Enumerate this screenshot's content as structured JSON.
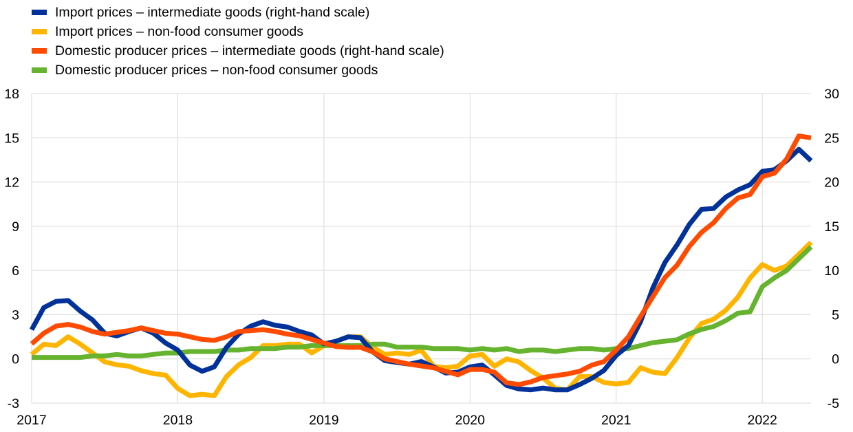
{
  "chart_data": {
    "type": "line",
    "legend_position": "top-left",
    "grid": true,
    "x_axis": {
      "type": "date",
      "range": [
        "2017-01",
        "2022-05"
      ],
      "tick_labels": [
        "2017",
        "2018",
        "2019",
        "2020",
        "2021",
        "2022"
      ]
    },
    "y_left": {
      "range": [
        -3,
        18
      ],
      "ticks": [
        -3,
        0,
        3,
        6,
        9,
        12,
        15,
        18
      ],
      "tick_labels": [
        "-3",
        "0",
        "3",
        "6",
        "9",
        "12",
        "15",
        "18"
      ]
    },
    "y_right": {
      "range": [
        -5,
        30
      ],
      "ticks": [
        -5,
        0,
        5,
        10,
        15,
        20,
        25,
        30
      ],
      "tick_labels": [
        "-5",
        "0",
        "5",
        "10",
        "15",
        "20",
        "25",
        "30"
      ]
    },
    "x": [
      "2017-01",
      "2017-02",
      "2017-03",
      "2017-04",
      "2017-05",
      "2017-06",
      "2017-07",
      "2017-08",
      "2017-09",
      "2017-10",
      "2017-11",
      "2017-12",
      "2018-01",
      "2018-02",
      "2018-03",
      "2018-04",
      "2018-05",
      "2018-06",
      "2018-07",
      "2018-08",
      "2018-09",
      "2018-10",
      "2018-11",
      "2018-12",
      "2019-01",
      "2019-02",
      "2019-03",
      "2019-04",
      "2019-05",
      "2019-06",
      "2019-07",
      "2019-08",
      "2019-09",
      "2019-10",
      "2019-11",
      "2019-12",
      "2020-01",
      "2020-02",
      "2020-03",
      "2020-04",
      "2020-05",
      "2020-06",
      "2020-07",
      "2020-08",
      "2020-09",
      "2020-10",
      "2020-11",
      "2020-12",
      "2021-01",
      "2021-02",
      "2021-03",
      "2021-04",
      "2021-05",
      "2021-06",
      "2021-07",
      "2021-08",
      "2021-09",
      "2021-10",
      "2021-11",
      "2021-12",
      "2022-01",
      "2022-02",
      "2022-03",
      "2022-04",
      "2022-05"
    ],
    "series": [
      {
        "name": "Import prices – intermediate goods (right-hand scale)",
        "axis": "right",
        "color": "#003299",
        "values": [
          3.3,
          5.8,
          6.5,
          6.6,
          5.4,
          4.4,
          2.9,
          2.6,
          3.1,
          3.5,
          2.9,
          1.8,
          1.0,
          -0.7,
          -1.4,
          -0.9,
          1.3,
          2.8,
          3.7,
          4.2,
          3.8,
          3.6,
          3.1,
          2.7,
          1.7,
          2.0,
          2.5,
          2.4,
          0.8,
          -0.2,
          -0.4,
          -0.6,
          -0.3,
          -0.9,
          -1.6,
          -1.5,
          -0.9,
          -0.7,
          -1.8,
          -3.0,
          -3.4,
          -3.5,
          -3.3,
          -3.5,
          -3.5,
          -2.9,
          -2.2,
          -1.3,
          0.4,
          1.5,
          4.2,
          8.0,
          10.9,
          12.9,
          15.2,
          16.9,
          17.0,
          18.3,
          19.1,
          19.7,
          21.2,
          21.4,
          22.4,
          23.7,
          22.4
        ]
      },
      {
        "name": "Import prices – non-food consumer goods",
        "axis": "left",
        "color": "#FFB400",
        "values": [
          0.3,
          1.0,
          0.9,
          1.5,
          1.0,
          0.4,
          -0.2,
          -0.4,
          -0.5,
          -0.8,
          -1.0,
          -1.1,
          -2.0,
          -2.5,
          -2.4,
          -2.5,
          -1.2,
          -0.4,
          0.1,
          0.9,
          0.9,
          1.0,
          1.0,
          0.4,
          0.9,
          1.2,
          1.5,
          1.5,
          0.8,
          0.3,
          0.4,
          0.3,
          0.6,
          -0.5,
          -0.6,
          -0.5,
          0.2,
          0.3,
          -0.5,
          0.0,
          -0.2,
          -0.8,
          -1.3,
          -2.0,
          -2.1,
          -1.2,
          -1.2,
          -1.6,
          -1.7,
          -1.6,
          -0.6,
          -0.9,
          -1.0,
          0.1,
          1.4,
          2.4,
          2.7,
          3.3,
          4.2,
          5.5,
          6.4,
          6.0,
          6.3,
          7.1,
          7.9
        ]
      },
      {
        "name": "Domestic producer prices – intermediate goods (right-hand scale)",
        "axis": "right",
        "color": "#FF4B00",
        "values": [
          1.7,
          2.9,
          3.7,
          3.9,
          3.6,
          3.1,
          2.8,
          3.0,
          3.2,
          3.5,
          3.2,
          2.9,
          2.8,
          2.5,
          2.2,
          2.1,
          2.5,
          3.1,
          3.2,
          3.3,
          3.1,
          2.8,
          2.6,
          2.2,
          1.8,
          1.4,
          1.3,
          1.3,
          0.8,
          0.0,
          -0.3,
          -0.6,
          -0.8,
          -1.0,
          -1.4,
          -1.8,
          -1.2,
          -1.2,
          -1.5,
          -2.7,
          -2.9,
          -2.6,
          -2.1,
          -1.9,
          -1.7,
          -1.4,
          -0.7,
          -0.3,
          1.0,
          2.5,
          4.8,
          7.0,
          9.2,
          10.6,
          12.7,
          14.3,
          15.4,
          17.0,
          18.2,
          18.6,
          20.6,
          21.0,
          22.6,
          25.2,
          25.0
        ]
      },
      {
        "name": "Domestic producer prices – non-food consumer goods",
        "axis": "left",
        "color": "#65B32E",
        "values": [
          0.1,
          0.1,
          0.1,
          0.1,
          0.1,
          0.2,
          0.2,
          0.3,
          0.2,
          0.2,
          0.3,
          0.4,
          0.4,
          0.5,
          0.5,
          0.5,
          0.6,
          0.6,
          0.7,
          0.7,
          0.7,
          0.8,
          0.8,
          0.9,
          0.9,
          0.9,
          0.9,
          0.9,
          1.0,
          1.0,
          0.8,
          0.8,
          0.8,
          0.7,
          0.7,
          0.7,
          0.6,
          0.7,
          0.6,
          0.7,
          0.5,
          0.6,
          0.6,
          0.5,
          0.6,
          0.7,
          0.7,
          0.6,
          0.7,
          0.7,
          0.9,
          1.1,
          1.2,
          1.3,
          1.7,
          2.0,
          2.2,
          2.6,
          3.1,
          3.2,
          4.9,
          5.5,
          6.0,
          6.8,
          7.6
        ]
      }
    ]
  }
}
